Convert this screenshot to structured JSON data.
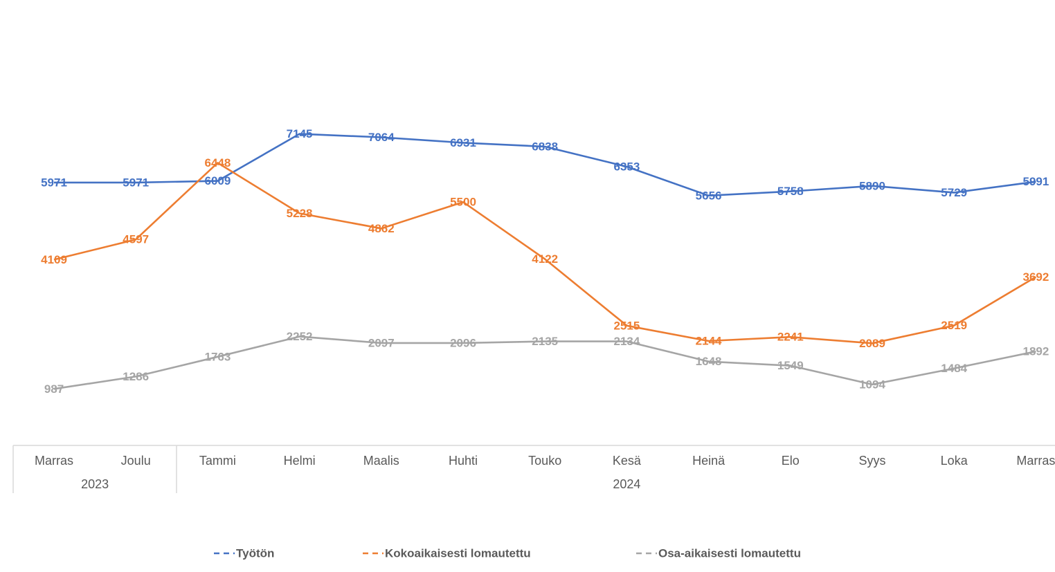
{
  "chart_data": {
    "type": "line",
    "title": "",
    "xlabel": "",
    "ylabel": "",
    "categories": [
      "Marras",
      "Joulu",
      "Tammi",
      "Helmi",
      "Maalis",
      "Huhti",
      "Touko",
      "Kesä",
      "Heinä",
      "Elo",
      "Syys",
      "Loka",
      "Marras"
    ],
    "year_groups": [
      {
        "label": "2023",
        "span": 2
      },
      {
        "label": "2024",
        "span": 11
      }
    ],
    "series": [
      {
        "name": "Työtön",
        "color": "#4472C4",
        "values": [
          5971,
          5971,
          6009,
          7145,
          7064,
          6931,
          6838,
          6353,
          5656,
          5758,
          5890,
          5729,
          5991
        ]
      },
      {
        "name": "Kokoaikaisesti lomautettu",
        "color": "#ED7D31",
        "values": [
          4109,
          4597,
          6448,
          5228,
          4862,
          5500,
          4122,
          2515,
          2144,
          2241,
          2089,
          2519,
          3692
        ]
      },
      {
        "name": "Osa-aikaisesti lomautettu",
        "color": "#A5A5A5",
        "values": [
          987,
          1286,
          1763,
          2252,
          2097,
          2096,
          2135,
          2134,
          1648,
          1549,
          1094,
          1484,
          1892
        ]
      }
    ],
    "data_labels": true,
    "grid": false,
    "legend_position": "bottom"
  }
}
